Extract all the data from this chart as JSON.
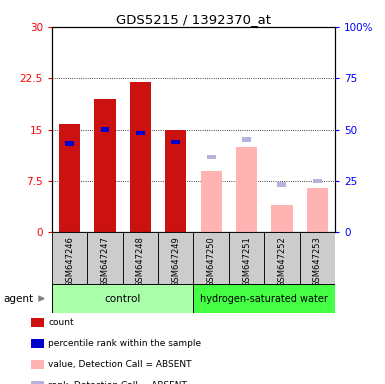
{
  "title": "GDS5215 / 1392370_at",
  "samples": [
    "GSM647246",
    "GSM647247",
    "GSM647248",
    "GSM647249",
    "GSM647250",
    "GSM647251",
    "GSM647252",
    "GSM647253"
  ],
  "red_values": [
    15.8,
    19.5,
    22.0,
    14.9,
    null,
    null,
    null,
    null
  ],
  "pink_values": [
    null,
    null,
    null,
    null,
    9.0,
    12.5,
    4.0,
    6.5
  ],
  "blue_values": [
    13.0,
    15.0,
    14.5,
    13.2,
    null,
    null,
    null,
    null
  ],
  "lblue_values": [
    null,
    null,
    null,
    null,
    11.0,
    13.5,
    7.0,
    7.5
  ],
  "ylim_left": [
    0,
    30
  ],
  "ylim_right": [
    0,
    100
  ],
  "yticks_left": [
    0,
    7.5,
    15,
    22.5,
    30
  ],
  "ytick_labels_left": [
    "0",
    "7.5",
    "15",
    "22.5",
    "30"
  ],
  "yticks_right": [
    0,
    25,
    50,
    75,
    100
  ],
  "ytick_labels_right": [
    "0",
    "25",
    "50",
    "75",
    "100%"
  ],
  "control_color": "#aaffaa",
  "hydro_color": "#44ff44",
  "gray_color": "#cccccc",
  "bar_width": 0.6,
  "blue_bar_width": 0.25,
  "blue_bar_height": 0.7,
  "legend_items": [
    {
      "label": "count",
      "color": "#cc1111"
    },
    {
      "label": "percentile rank within the sample",
      "color": "#0000cc"
    },
    {
      "label": "value, Detection Call = ABSENT",
      "color": "#ffb3b3"
    },
    {
      "label": "rank, Detection Call = ABSENT",
      "color": "#b3b3dd"
    }
  ]
}
